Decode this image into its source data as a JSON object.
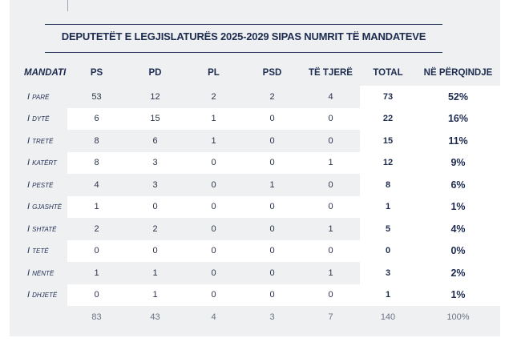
{
  "title": "DEPUTETËT E LEGJISLATURËS 2025-2029 SIPAS NUMRIT TË MANDATEVE",
  "chart_data": {
    "type": "table",
    "title": "DEPUTETËT E LEGJISLATURËS 2025-2029 SIPAS NUMRIT TË MANDATEVE",
    "columns": [
      "MANDATI",
      "PS",
      "PD",
      "PL",
      "PSD",
      "TË TJERË",
      "TOTAL",
      "NË PËRQINDJE"
    ],
    "rows": [
      {
        "label": "I parë",
        "values": [
          "53",
          "12",
          "2",
          "2",
          "4"
        ],
        "total": "73",
        "pct": "52%"
      },
      {
        "label": "I dytë",
        "values": [
          "6",
          "15",
          "1",
          "0",
          "0"
        ],
        "total": "22",
        "pct": "16%"
      },
      {
        "label": "I tretë",
        "values": [
          "8",
          "6",
          "1",
          "0",
          "0"
        ],
        "total": "15",
        "pct": "11%"
      },
      {
        "label": "I katërt",
        "values": [
          "8",
          "3",
          "0",
          "0",
          "1"
        ],
        "total": "12",
        "pct": "9%"
      },
      {
        "label": "I pestë",
        "values": [
          "4",
          "3",
          "0",
          "1",
          "0"
        ],
        "total": "8",
        "pct": "6%"
      },
      {
        "label": "I gjashtë",
        "values": [
          "1",
          "0",
          "0",
          "0",
          "0"
        ],
        "total": "1",
        "pct": "1%"
      },
      {
        "label": "I shtatë",
        "values": [
          "2",
          "2",
          "0",
          "0",
          "1"
        ],
        "total": "5",
        "pct": "4%"
      },
      {
        "label": "I tetë",
        "values": [
          "0",
          "0",
          "0",
          "0",
          "0"
        ],
        "total": "0",
        "pct": "0%"
      },
      {
        "label": "I nëntë",
        "values": [
          "1",
          "1",
          "0",
          "0",
          "1"
        ],
        "total": "3",
        "pct": "2%"
      },
      {
        "label": "I dhjetë",
        "values": [
          "0",
          "1",
          "0",
          "0",
          "0"
        ],
        "total": "1",
        "pct": "1%"
      }
    ],
    "summary": {
      "label": "",
      "values": [
        "83",
        "43",
        "4",
        "3",
        "7"
      ],
      "total": "140",
      "pct": "100%"
    }
  }
}
